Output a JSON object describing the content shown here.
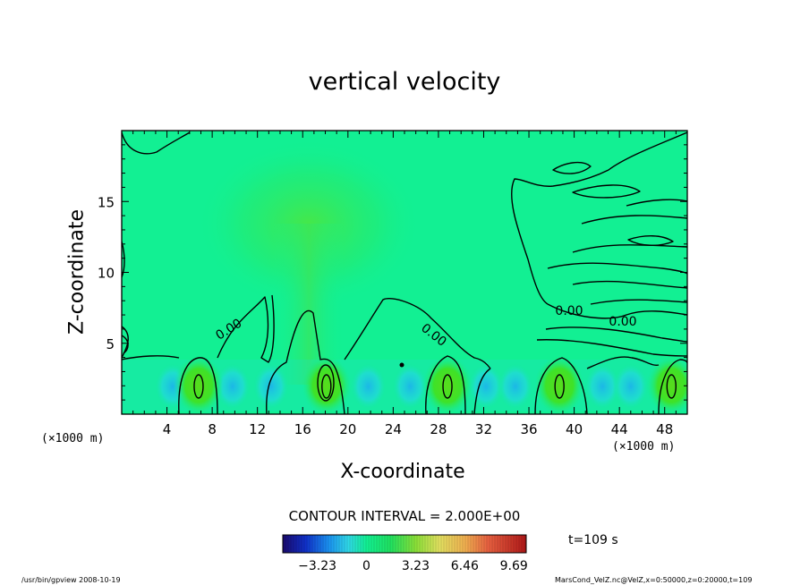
{
  "chart_data": {
    "type": "heatmap",
    "title": "vertical velocity",
    "xlabel": "X-coordinate",
    "ylabel": "Z-coordinate",
    "x_unit_left": "(×1000 m)",
    "x_unit_right": "(×1000 m)",
    "xlim": [
      0,
      50
    ],
    "ylim": [
      0,
      20
    ],
    "x_ticks": [
      "4",
      "8",
      "12",
      "16",
      "20",
      "24",
      "28",
      "32",
      "36",
      "40",
      "44",
      "48"
    ],
    "x_tick_values": [
      4,
      8,
      12,
      16,
      20,
      24,
      28,
      32,
      36,
      40,
      44,
      48
    ],
    "y_ticks": [
      "5",
      "10",
      "15"
    ],
    "y_tick_values": [
      5,
      10,
      15
    ],
    "contour_interval": "CONTOUR INTERVAL = 2.000E+00",
    "contour_labels": [
      "0.00",
      "0.00",
      "0.00",
      "0.00"
    ],
    "colorbar": {
      "ticks": [
        "−3.23",
        "0",
        "3.23",
        "6.46",
        "9.69"
      ],
      "tick_values": [
        -3.23,
        0,
        3.23,
        6.46,
        9.69
      ],
      "range": [
        -5.5,
        10.5
      ]
    },
    "updraft_cores_x": [
      6.8,
      18.1,
      28.8,
      38.7,
      48.6
    ],
    "time_label": "t=109 s",
    "grid": false
  },
  "footer": {
    "left": "/usr/bin/gpview   2008-10-19",
    "right": "MarsCond_VelZ.nc@VelZ,x=0:50000,z=0:20000,t=109"
  },
  "colors": {
    "background_field": "#12f093",
    "negative": "#1ec8f0",
    "positive": "#2fe23a",
    "line": "#000000"
  }
}
